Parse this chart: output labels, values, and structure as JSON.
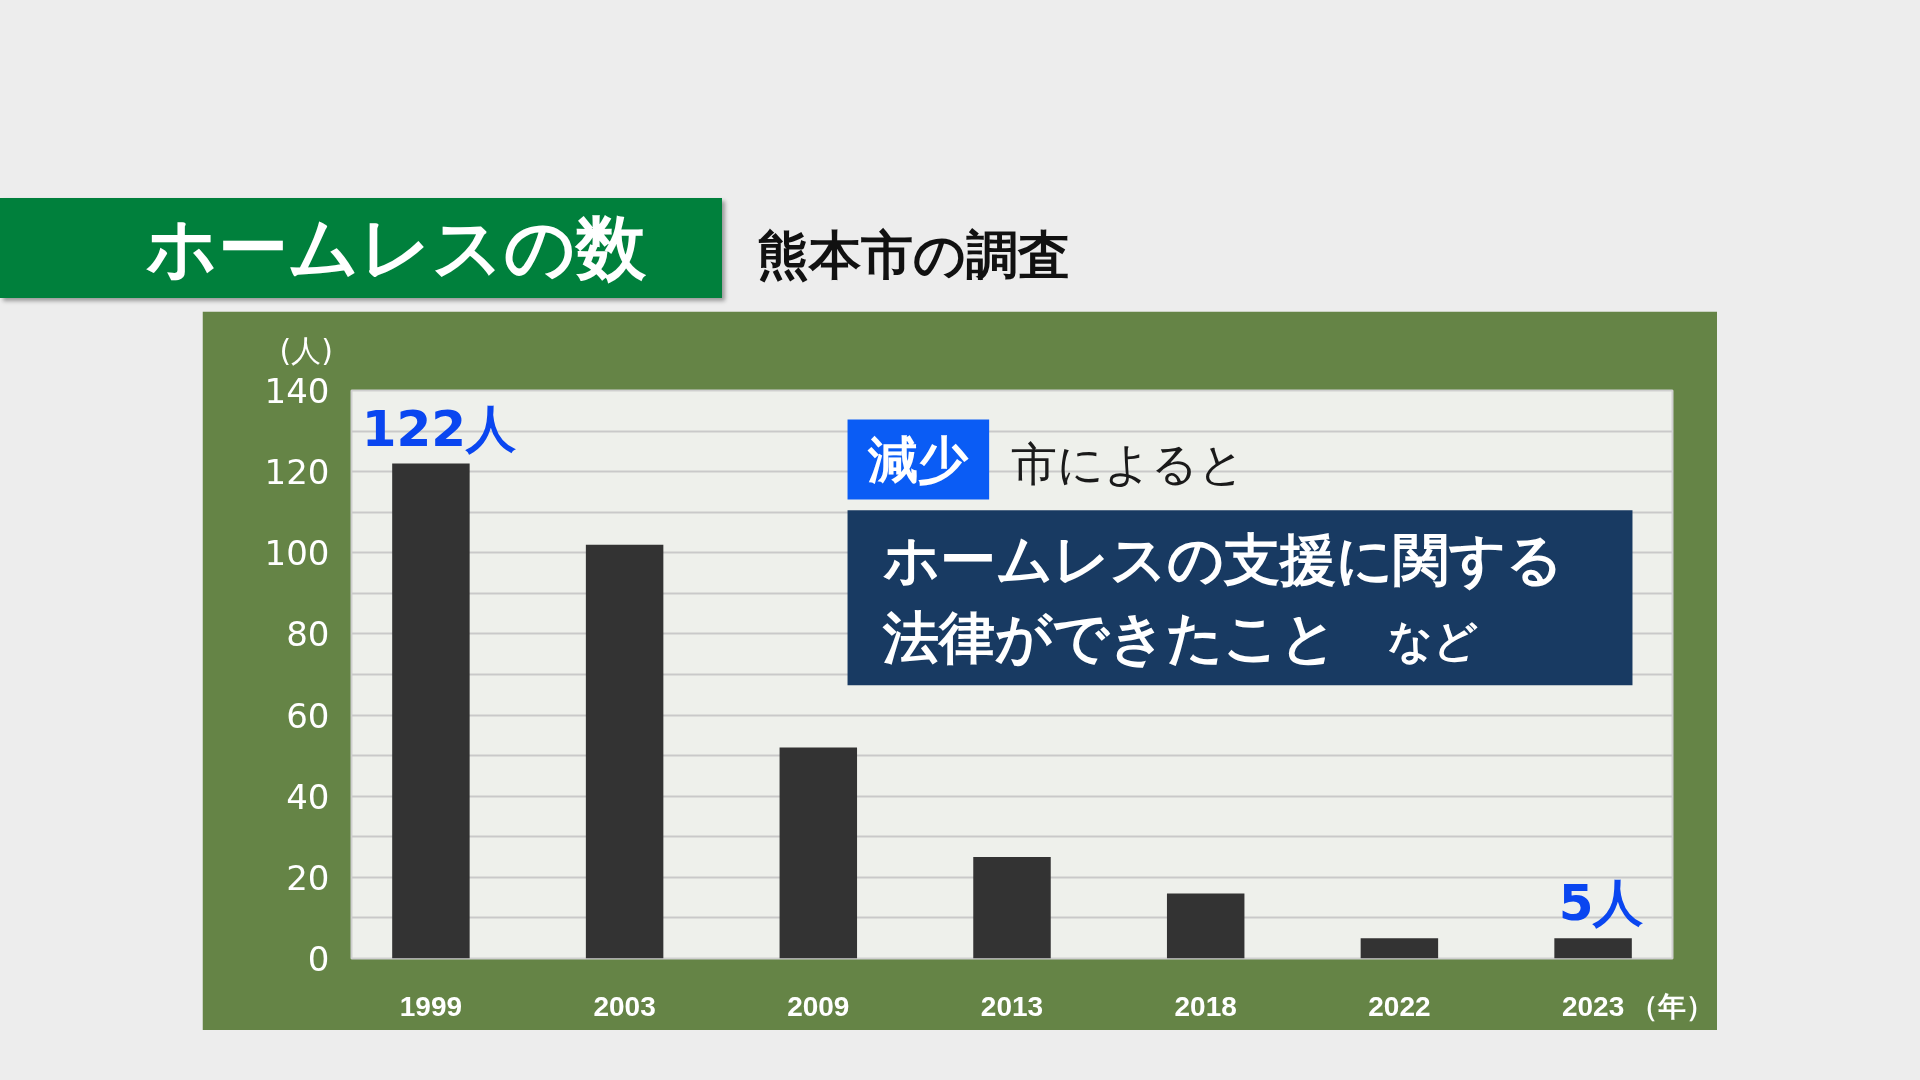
{
  "chart_data": {
    "type": "bar",
    "title": "ホームレスの数",
    "subtitle": "熊本市の調査",
    "ylabel": "(人)",
    "xlabel": "（年）",
    "categories": [
      "1999",
      "2003",
      "2009",
      "2013",
      "2018",
      "2022",
      "2023"
    ],
    "values": [
      122,
      102,
      52,
      25,
      16,
      5,
      5
    ],
    "color": "#333333",
    "value_labels": [
      "122人",
      null,
      null,
      null,
      null,
      null,
      "5人"
    ],
    "ylim": [
      0,
      140
    ],
    "yticks": [
      0,
      {
        "value": 10,
        "label": null
      },
      20,
      {
        "value": 30,
        "label": null
      },
      40,
      {
        "value": 50,
        "label": null
      },
      60,
      {
        "value": 70,
        "label": null
      },
      80,
      {
        "value": 90,
        "label": null
      },
      100,
      {
        "value": 110,
        "label": null
      },
      120,
      {
        "value": 130,
        "label": null
      },
      140
    ],
    "grid": "y",
    "annotations": [
      "減少",
      "市によると",
      "ホームレスの支援に関する",
      "法律ができたこと",
      "など"
    ]
  }
}
